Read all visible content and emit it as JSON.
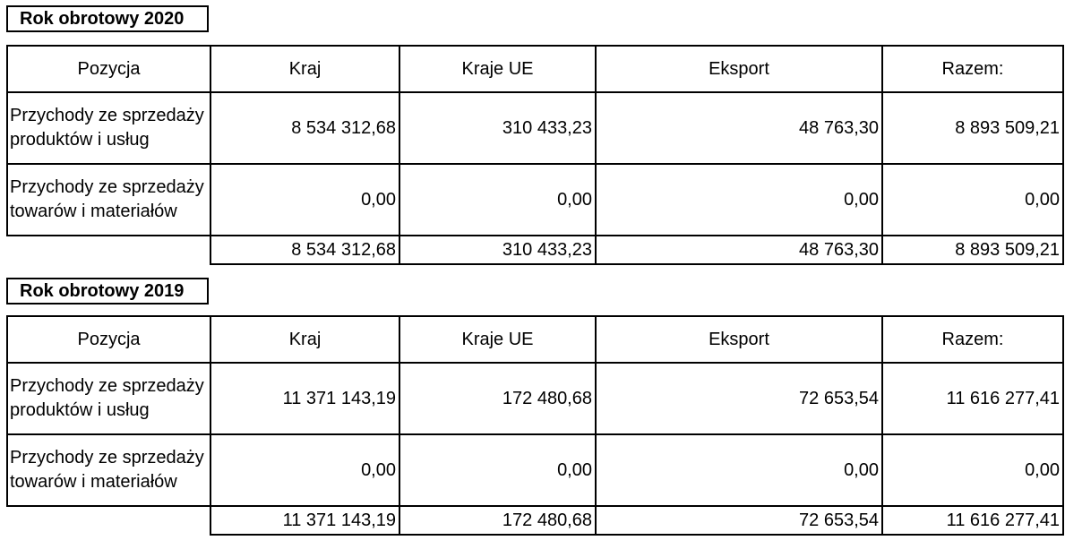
{
  "sections": [
    {
      "title": "Rok obrotowy 2020",
      "headers": [
        "Pozycja",
        "Kraj",
        "Kraje UE",
        "Eksport",
        "Razem:"
      ],
      "rows": [
        {
          "label": "Przychody ze sprzedaży produktów i usług",
          "values": [
            "8 534 312,68",
            "310 433,23",
            "48 763,30",
            "8 893 509,21"
          ]
        },
        {
          "label": "Przychody ze sprzedaży towarów i materiałów",
          "values": [
            "0,00",
            "0,00",
            "0,00",
            "0,00"
          ]
        }
      ],
      "totals": [
        "8 534 312,68",
        "310 433,23",
        "48 763,30",
        "8 893 509,21"
      ]
    },
    {
      "title": "Rok obrotowy 2019",
      "headers": [
        "Pozycja",
        "Kraj",
        "Kraje UE",
        "Eksport",
        "Razem:"
      ],
      "rows": [
        {
          "label": "Przychody ze sprzedaży produktów i usług",
          "values": [
            "11 371 143,19",
            "172 480,68",
            "72 653,54",
            "11 616 277,41"
          ]
        },
        {
          "label": "Przychody ze sprzedaży towarów i materiałów",
          "values": [
            "0,00",
            "0,00",
            "0,00",
            "0,00"
          ]
        }
      ],
      "totals": [
        "11 371 143,19",
        "172 480,68",
        "72 653,54",
        "11 616 277,41"
      ]
    }
  ]
}
